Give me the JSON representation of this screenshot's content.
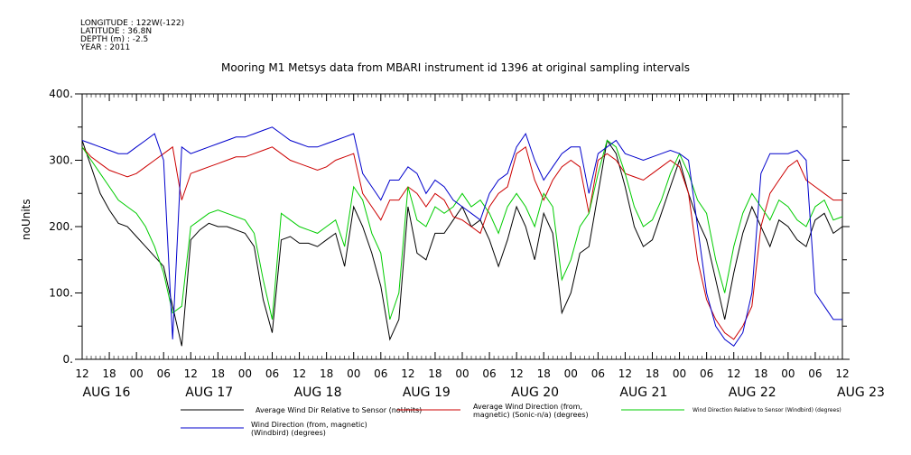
{
  "header": {
    "longitude": "LONGITUDE : 122W(-122)",
    "latitude": "LATITUDE : 36.8N",
    "depth": "DEPTH (m) : -2.5",
    "year": "YEAR : 2011"
  },
  "chart_data": {
    "type": "line",
    "title": "Mooring M1 Metsys data from MBARI instrument id 1396 at original sampling intervals",
    "ylabel": "noUnits",
    "xlabel": "",
    "ylim": [
      0,
      400
    ],
    "yticks": [
      "0.",
      "100.",
      "200.",
      "300.",
      "400."
    ],
    "xlim_hours": [
      0,
      168
    ],
    "hour_ticks": [
      "12",
      "18",
      "00",
      "06",
      "12",
      "18",
      "00",
      "06",
      "12",
      "18",
      "00",
      "06",
      "12",
      "18",
      "00",
      "06",
      "12",
      "18",
      "00",
      "06",
      "12",
      "18",
      "00",
      "06",
      "12",
      "18",
      "00",
      "06",
      "12"
    ],
    "day_labels": [
      "AUG 16",
      "AUG 17",
      "AUG 18",
      "AUG 19",
      "AUG 20",
      "AUG 21",
      "AUG 22",
      "AUG 23"
    ],
    "x_meaning": "hours from AUG 16 12:00",
    "series": [
      {
        "name": "Average Wind Dir Relative to Sensor (noUnits)",
        "color": "#000000",
        "x": [
          0,
          2,
          4,
          6,
          8,
          10,
          12,
          14,
          16,
          18,
          20,
          22,
          24,
          26,
          28,
          30,
          32,
          34,
          36,
          38,
          40,
          42,
          44,
          46,
          48,
          50,
          52,
          54,
          56,
          58,
          60,
          62,
          64,
          66,
          68,
          70,
          72,
          74,
          76,
          78,
          80,
          82,
          84,
          86,
          88,
          90,
          92,
          94,
          96,
          98,
          100,
          102,
          104,
          106,
          108,
          110,
          112,
          114,
          116,
          118,
          120,
          122,
          124,
          126,
          128,
          130,
          132,
          134,
          136,
          138,
          140,
          142,
          144,
          146,
          148,
          150,
          152,
          154,
          156,
          158,
          160,
          162,
          164,
          166,
          168
        ],
        "y": [
          330,
          290,
          250,
          225,
          205,
          200,
          185,
          170,
          155,
          140,
          80,
          20,
          180,
          195,
          205,
          200,
          200,
          195,
          190,
          170,
          90,
          40,
          180,
          185,
          175,
          175,
          170,
          180,
          190,
          140,
          230,
          200,
          160,
          110,
          30,
          60,
          230,
          160,
          150,
          190,
          190,
          210,
          230,
          200,
          210,
          180,
          140,
          180,
          230,
          200,
          150,
          220,
          190,
          70,
          100,
          160,
          170,
          250,
          330,
          310,
          260,
          200,
          170,
          180,
          220,
          260,
          300,
          250,
          210,
          180,
          120,
          60,
          130,
          190,
          230,
          200,
          170,
          210,
          200,
          180,
          170,
          210,
          220,
          190,
          200
        ]
      },
      {
        "name": "Average Wind Direction (from, magnetic) (Sonic-n/a) (degrees)",
        "color": "#cc0000",
        "x": [
          0,
          2,
          4,
          6,
          8,
          10,
          12,
          14,
          16,
          18,
          20,
          22,
          24,
          26,
          28,
          30,
          32,
          34,
          36,
          38,
          40,
          42,
          44,
          46,
          48,
          50,
          52,
          54,
          56,
          58,
          60,
          62,
          64,
          66,
          68,
          70,
          72,
          74,
          76,
          78,
          80,
          82,
          84,
          86,
          88,
          90,
          92,
          94,
          96,
          98,
          100,
          102,
          104,
          106,
          108,
          110,
          112,
          114,
          116,
          118,
          120,
          122,
          124,
          126,
          128,
          130,
          132,
          134,
          136,
          138,
          140,
          142,
          144,
          146,
          148,
          150,
          152,
          154,
          156,
          158,
          160,
          162,
          164,
          166,
          168
        ],
        "y": [
          320,
          305,
          295,
          285,
          280,
          275,
          280,
          290,
          300,
          310,
          320,
          240,
          280,
          285,
          290,
          295,
          300,
          305,
          305,
          310,
          315,
          320,
          310,
          300,
          295,
          290,
          285,
          290,
          300,
          305,
          310,
          250,
          230,
          210,
          240,
          240,
          260,
          250,
          230,
          250,
          240,
          215,
          210,
          200,
          190,
          230,
          250,
          260,
          310,
          320,
          270,
          240,
          270,
          290,
          300,
          290,
          220,
          300,
          310,
          300,
          280,
          275,
          270,
          280,
          290,
          300,
          290,
          250,
          150,
          90,
          60,
          40,
          30,
          50,
          80,
          200,
          250,
          270,
          290,
          300,
          270,
          260,
          250,
          240,
          240
        ]
      },
      {
        "name": "Wind Direction Relative to Sensor (Windbird) (degrees)",
        "color": "#00cc00",
        "x": [
          0,
          2,
          4,
          6,
          8,
          10,
          12,
          14,
          16,
          18,
          20,
          22,
          24,
          26,
          28,
          30,
          32,
          34,
          36,
          38,
          40,
          42,
          44,
          46,
          48,
          50,
          52,
          54,
          56,
          58,
          60,
          62,
          64,
          66,
          68,
          70,
          72,
          74,
          76,
          78,
          80,
          82,
          84,
          86,
          88,
          90,
          92,
          94,
          96,
          98,
          100,
          102,
          104,
          106,
          108,
          110,
          112,
          114,
          116,
          118,
          120,
          122,
          124,
          126,
          128,
          130,
          132,
          134,
          136,
          138,
          140,
          142,
          144,
          146,
          148,
          150,
          152,
          154,
          156,
          158,
          160,
          162,
          164,
          166,
          168
        ],
        "y": [
          320,
          300,
          280,
          260,
          240,
          230,
          220,
          200,
          170,
          130,
          70,
          80,
          200,
          210,
          220,
          225,
          220,
          215,
          210,
          190,
          120,
          60,
          220,
          210,
          200,
          195,
          190,
          200,
          210,
          170,
          260,
          240,
          190,
          160,
          60,
          100,
          260,
          210,
          200,
          230,
          220,
          230,
          250,
          230,
          240,
          220,
          190,
          230,
          250,
          230,
          200,
          250,
          230,
          120,
          150,
          200,
          220,
          280,
          330,
          320,
          280,
          230,
          200,
          210,
          240,
          280,
          310,
          280,
          240,
          220,
          150,
          100,
          170,
          220,
          250,
          230,
          210,
          240,
          230,
          210,
          200,
          230,
          240,
          210,
          215
        ]
      },
      {
        "name": "Wind Direction (from, magnetic) (Windbird) (degrees)",
        "color": "#0000cc",
        "x": [
          0,
          2,
          4,
          6,
          8,
          10,
          12,
          14,
          16,
          18,
          20,
          22,
          24,
          26,
          28,
          30,
          32,
          34,
          36,
          38,
          40,
          42,
          44,
          46,
          48,
          50,
          52,
          54,
          56,
          58,
          60,
          62,
          64,
          66,
          68,
          70,
          72,
          74,
          76,
          78,
          80,
          82,
          84,
          86,
          88,
          90,
          92,
          94,
          96,
          98,
          100,
          102,
          104,
          106,
          108,
          110,
          112,
          114,
          116,
          118,
          120,
          122,
          124,
          126,
          128,
          130,
          132,
          134,
          136,
          138,
          140,
          142,
          144,
          146,
          148,
          150,
          152,
          154,
          156,
          158,
          160,
          162,
          164,
          166,
          168
        ],
        "y": [
          330,
          325,
          320,
          315,
          310,
          310,
          320,
          330,
          340,
          300,
          30,
          320,
          310,
          315,
          320,
          325,
          330,
          335,
          335,
          340,
          345,
          350,
          340,
          330,
          325,
          320,
          320,
          325,
          330,
          335,
          340,
          280,
          260,
          240,
          270,
          270,
          290,
          280,
          250,
          270,
          260,
          240,
          230,
          220,
          210,
          250,
          270,
          280,
          320,
          340,
          300,
          270,
          290,
          310,
          320,
          320,
          250,
          310,
          320,
          330,
          310,
          305,
          300,
          305,
          310,
          315,
          310,
          300,
          200,
          100,
          50,
          30,
          20,
          40,
          100,
          280,
          310,
          310,
          310,
          315,
          300,
          100,
          80,
          60,
          60
        ]
      }
    ]
  }
}
